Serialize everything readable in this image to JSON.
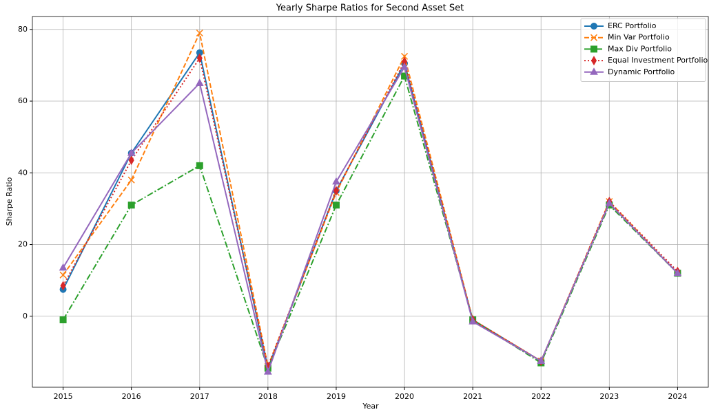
{
  "chart_data": {
    "type": "line",
    "title": "Yearly Sharpe Ratios for Second Asset Set",
    "xlabel": "Year",
    "ylabel": "Sharpe Ratio",
    "x": [
      2015,
      2016,
      2017,
      2018,
      2019,
      2020,
      2021,
      2022,
      2023,
      2024
    ],
    "series": [
      {
        "name": "ERC Portfolio",
        "color": "#1f77b4",
        "linestyle": "solid",
        "marker": "circle",
        "values": [
          7.5,
          45.5,
          73.5,
          -14.5,
          35,
          70.5,
          -1,
          -12.5,
          31.5,
          12
        ]
      },
      {
        "name": "Min Var Portfolio",
        "color": "#ff7f0e",
        "linestyle": "dashed",
        "marker": "x",
        "values": [
          11.5,
          38,
          79,
          -14,
          34.5,
          72.5,
          -1,
          -12.5,
          32,
          12
        ]
      },
      {
        "name": "Max Div Portfolio",
        "color": "#2ca02c",
        "linestyle": "dashdot",
        "marker": "square",
        "values": [
          -1,
          31,
          42,
          -14.5,
          31,
          67,
          -1,
          -13,
          31,
          12
        ]
      },
      {
        "name": "Equal Investment Portfolio",
        "color": "#d62728",
        "linestyle": "dotted",
        "marker": "thin_diamond",
        "values": [
          8.5,
          43.5,
          72,
          -14,
          35,
          71,
          -1,
          -12.5,
          32,
          12.5
        ]
      },
      {
        "name": "Dynamic Portfolio",
        "color": "#9467bd",
        "linestyle": "solid",
        "marker": "triangle",
        "values": [
          13.5,
          45.5,
          65,
          -15.5,
          37.5,
          69.5,
          -1.5,
          -12.5,
          31.5,
          12
        ]
      }
    ],
    "xlim": [
      2014.55,
      2024.45
    ],
    "xticks": [
      2015,
      2016,
      2017,
      2018,
      2019,
      2020,
      2021,
      2022,
      2023,
      2024
    ],
    "ylim": [
      -19.8,
      83.6
    ],
    "yticks": [
      0,
      20,
      40,
      60,
      80
    ],
    "grid": true,
    "legend": "upper right"
  }
}
